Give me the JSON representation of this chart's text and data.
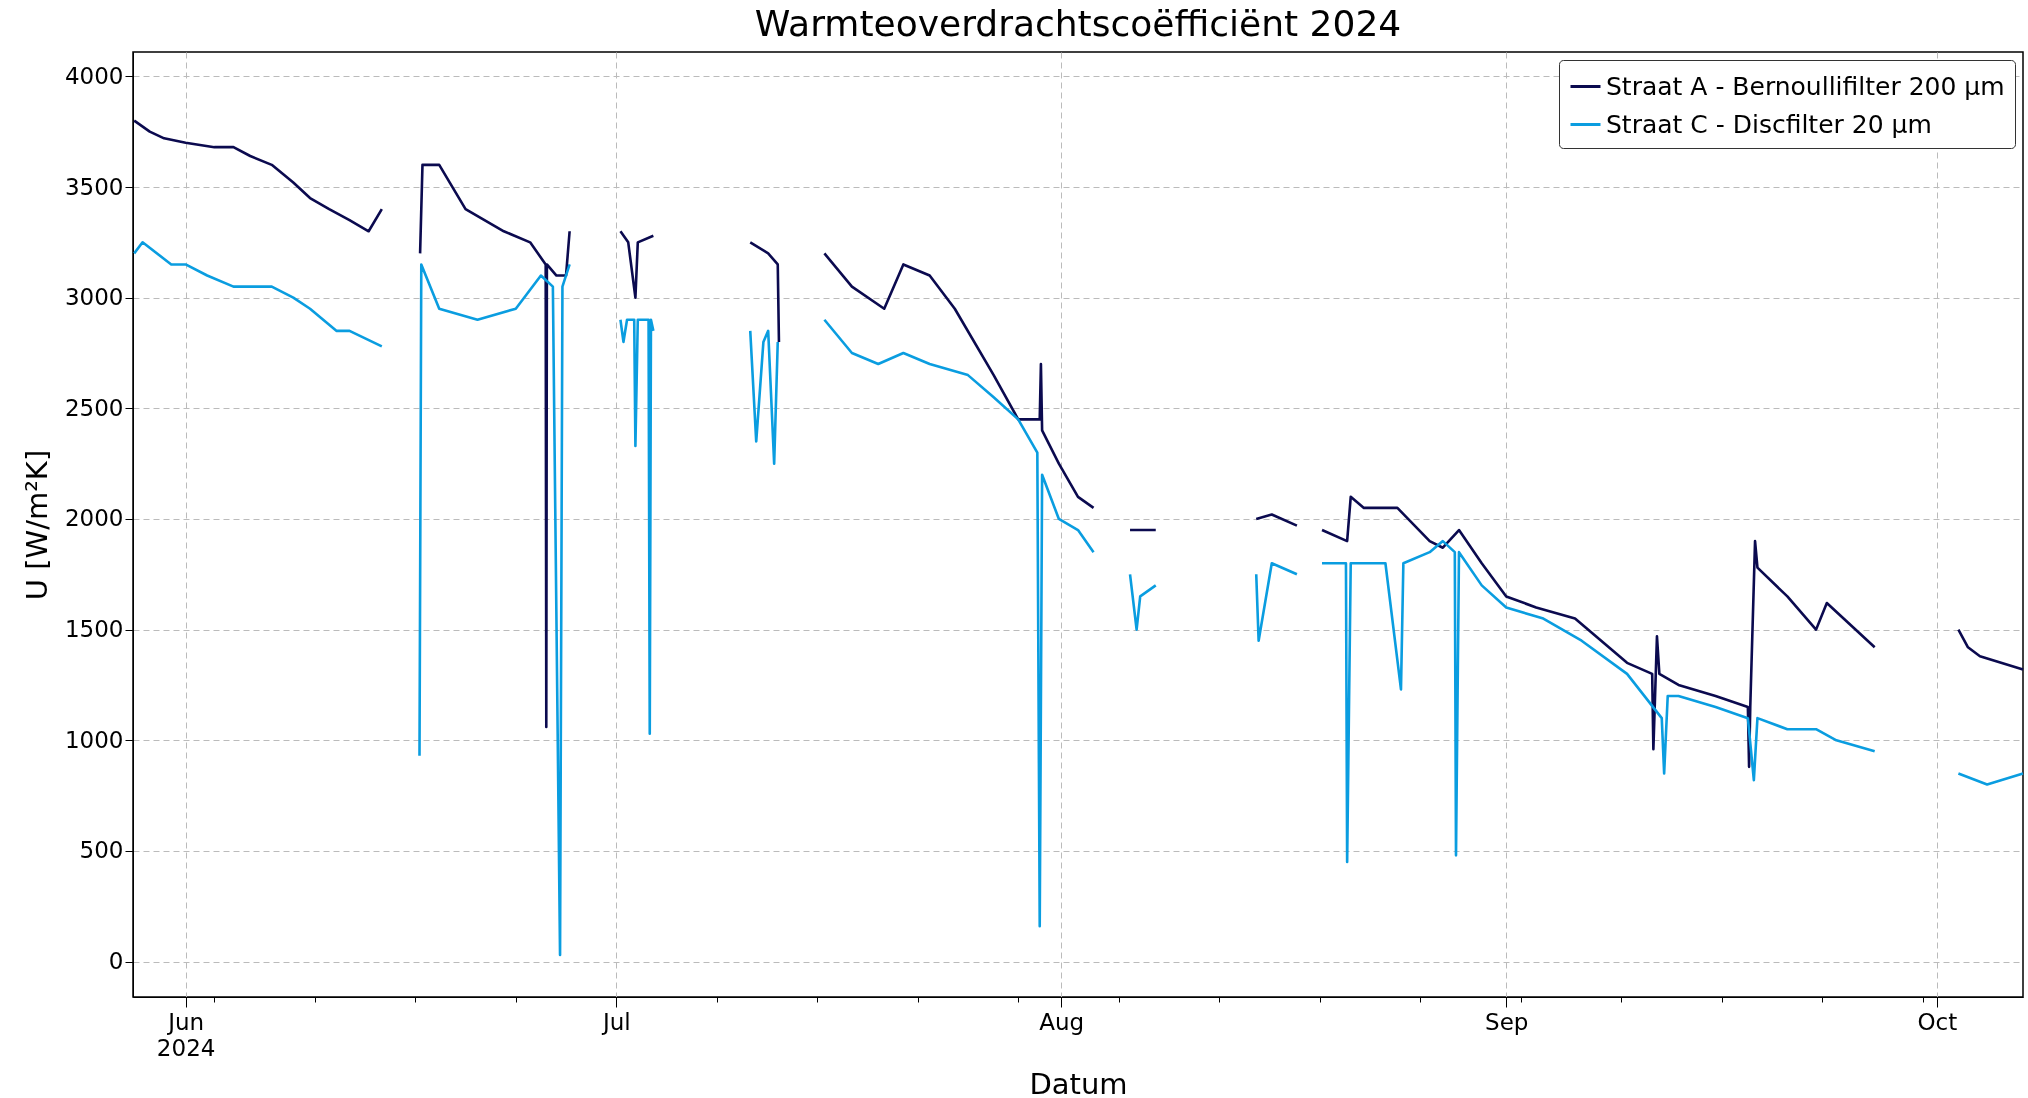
{
  "chart_data": {
    "type": "line",
    "title": "Warmteoverdrachtscoëfficiënt 2024",
    "xlabel": "Datum",
    "ylabel": "U [W/m²K]",
    "xlim": [
      "2024-05-28T08:00",
      "2024-10-07T00:00"
    ],
    "ylim": [
      -160,
      4110
    ],
    "yticks": [
      0,
      500,
      1000,
      1500,
      2000,
      2500,
      3000,
      3500,
      4000
    ],
    "xticks": [
      {
        "value": "2024-06-01",
        "label": "Jun\n2024"
      },
      {
        "value": "2024-06-03",
        "label": null
      },
      {
        "value": "2024-06-10",
        "label": null
      },
      {
        "value": "2024-06-17",
        "label": null
      },
      {
        "value": "2024-06-24",
        "label": null
      },
      {
        "value": "2024-07-01",
        "label": "Jul"
      },
      {
        "value": "2024-07-08",
        "label": null
      },
      {
        "value": "2024-07-15",
        "label": null
      },
      {
        "value": "2024-07-22",
        "label": null
      },
      {
        "value": "2024-07-29",
        "label": null
      },
      {
        "value": "2024-08-01",
        "label": "Aug"
      },
      {
        "value": "2024-08-05",
        "label": null
      },
      {
        "value": "2024-08-12",
        "label": null
      },
      {
        "value": "2024-08-19",
        "label": null
      },
      {
        "value": "2024-08-26",
        "label": null
      },
      {
        "value": "2024-09-01",
        "label": "Sep"
      },
      {
        "value": "2024-09-02",
        "label": null
      },
      {
        "value": "2024-09-09",
        "label": null
      },
      {
        "value": "2024-09-16",
        "label": null
      },
      {
        "value": "2024-09-23",
        "label": null
      },
      {
        "value": "2024-09-30",
        "label": null
      },
      {
        "value": "2024-10-01",
        "label": "Oct"
      }
    ],
    "grid": true,
    "legend": "top right",
    "line_style": "solid",
    "marker": "none",
    "series": [
      {
        "name": "Straat A - Bernoullifilter 200 µm",
        "color": "#0b0a4f",
        "x": [
          "2024-05-28T10:00",
          "2024-05-29T12:00",
          "2024-05-30T12:00",
          "2024-06-01",
          "2024-06-03",
          "2024-06-04T08:00",
          "2024-06-05T12:00",
          "2024-06-07",
          "2024-06-08T12:00",
          "2024-06-09T16:00",
          "2024-06-11",
          "2024-06-12T10:00",
          "2024-06-13T18:00",
          "2024-06-14T16:00",
          "2024-06-15T12:00",
          "2024-06-17T08:00",
          "2024-06-17T12:00",
          "2024-06-18T16:00",
          "2024-06-20T12:00",
          "2024-06-23T04:00",
          "2024-06-25",
          "2024-06-26T02:00",
          "2024-06-26T03:00",
          "2024-06-26T04:00",
          "2024-06-26T20:00",
          "2024-06-27T12:00",
          "2024-06-27T18:00",
          "2024-06-29",
          "2024-07-01T07:00",
          "2024-07-01T20:00",
          "2024-07-02T08:00",
          "2024-07-02T12:00",
          "2024-07-03T14:00",
          "2024-07-06",
          "2024-07-10T08:00",
          "2024-07-11T14:00",
          "2024-07-12T06:00",
          "2024-07-12T08:00",
          "2024-07-14",
          "2024-07-15T12:00",
          "2024-07-17T10:00",
          "2024-07-19T16:00",
          "2024-07-21",
          "2024-07-22T20:00",
          "2024-07-24T14:00",
          "2024-07-27T07:00",
          "2024-07-29",
          "2024-07-30T12:00",
          "2024-07-30T14:00",
          "2024-07-30T16:00",
          "2024-07-31T20:00",
          "2024-08-02T04:00",
          "2024-08-03T06:00",
          "2024-08-04",
          "2024-08-05T19:00",
          "2024-08-06T12:00",
          "2024-08-07T14:00",
          "2024-08-10",
          "2024-08-14T14:00",
          "2024-08-15T16:00",
          "2024-08-17T10:00",
          "2024-08-18",
          "2024-08-19T04:00",
          "2024-08-20T22:00",
          "2024-08-21T04:00",
          "2024-08-22T02:00",
          "2024-08-24T10:00",
          "2024-08-26T16:00",
          "2024-08-27T14:00",
          "2024-08-28T17:00",
          "2024-08-30T07:00",
          "2024-09-01",
          "2024-09-03T02:00",
          "2024-09-05T19:00",
          "2024-09-09T10:00",
          "2024-09-11T04:00",
          "2024-09-11T06:00",
          "2024-09-11T10:00",
          "2024-09-11T12:00",
          "2024-09-11T16:00",
          "2024-09-13",
          "2024-09-15T14:00",
          "2024-09-17T20:00",
          "2024-09-17T22:00",
          "2024-09-18",
          "2024-09-18T08:00",
          "2024-09-18T12:00",
          "2024-09-20T14:00",
          "2024-09-22T14:00",
          "2024-09-23T08:00",
          "2024-09-26T16:00",
          "2024-09-29",
          "2024-10-02T12:00",
          "2024-10-03T04:00",
          "2024-10-04",
          "2024-10-07"
        ],
        "values": [
          3800,
          3750,
          3720,
          3700,
          3680,
          3680,
          3640,
          3600,
          3520,
          3450,
          3400,
          3350,
          3300,
          3400,
          null,
          3200,
          3600,
          3600,
          3400,
          3300,
          3250,
          3150,
          1060,
          3150,
          3100,
          3100,
          3300,
          null,
          3300,
          3250,
          3000,
          3250,
          3280,
          null,
          3250,
          3200,
          3150,
          2800,
          null,
          3200,
          3050,
          2950,
          3150,
          3100,
          2950,
          2650,
          2450,
          2450,
          2700,
          2400,
          2250,
          2100,
          2050,
          null,
          1950,
          1950,
          1950,
          null,
          2000,
          2020,
          1970,
          null,
          1950,
          1900,
          2100,
          2050,
          2050,
          1900,
          1870,
          1950,
          1800,
          1650,
          1600,
          1550,
          1350,
          1300,
          960,
          1300,
          1470,
          1300,
          1250,
          1200,
          1150,
          880,
          1150,
          1900,
          1780,
          1650,
          1500,
          1620,
          1420,
          null,
          1500,
          1420,
          1380,
          1320
        ]
      },
      {
        "name": "Straat C - Discfilter 20 µm",
        "color": "#0a9de0",
        "x": [
          "2024-05-28T10:00",
          "2024-05-29",
          "2024-05-31",
          "2024-06-01",
          "2024-06-02T12:00",
          "2024-06-04T08:00",
          "2024-06-07",
          "2024-06-08T12:00",
          "2024-06-09T16:00",
          "2024-06-11T12:00",
          "2024-06-12T10:00",
          "2024-06-14T16:00",
          "2024-06-15T12:00",
          "2024-06-17T07:00",
          "2024-06-17T10:00",
          "2024-06-18T16:00",
          "2024-06-21T08:00",
          "2024-06-24",
          "2024-06-25T18:00",
          "2024-06-26T14:00",
          "2024-06-27T02:00",
          "2024-06-27T06:00",
          "2024-06-27T18:00",
          "2024-06-29",
          "2024-07-01T07:00",
          "2024-07-01T12:00",
          "2024-07-01T18:00",
          "2024-07-02T06:00",
          "2024-07-02T08:00",
          "2024-07-02T12:00",
          "2024-07-03T06:00",
          "2024-07-03T08:00",
          "2024-07-03T10:00",
          "2024-07-03T14:00",
          "2024-07-06",
          "2024-07-10T08:00",
          "2024-07-10T18:00",
          "2024-07-11T06:00",
          "2024-07-11T14:00",
          "2024-07-12",
          "2024-07-12T06:00",
          "2024-07-14",
          "2024-07-15T12:00",
          "2024-07-17T10:00",
          "2024-07-19T06:00",
          "2024-07-21",
          "2024-07-22T20:00",
          "2024-07-25T12:00",
          "2024-07-27T07:00",
          "2024-07-29",
          "2024-07-30T08:00",
          "2024-07-30T12:00",
          "2024-07-30T16:00",
          "2024-07-31T20:00",
          "2024-08-02T04:00",
          "2024-08-03T06:00",
          "2024-08-04",
          "2024-08-05T19:00",
          "2024-08-06T06:00",
          "2024-08-06T12:00",
          "2024-08-07T14:00",
          "2024-08-10",
          "2024-08-14T14:00",
          "2024-08-14T18:00",
          "2024-08-15T16:00",
          "2024-08-17T10:00",
          "2024-08-18",
          "2024-08-19T04:00",
          "2024-08-20T20:00",
          "2024-08-20T22:00",
          "2024-08-21T04:00",
          "2024-08-23T14:00",
          "2024-08-24T16:00",
          "2024-08-24T20:00",
          "2024-08-26T16:00",
          "2024-08-27T14:00",
          "2024-08-28T10:00",
          "2024-08-28T12:00",
          "2024-08-28T17:00",
          "2024-08-30T07:00",
          "2024-09-01",
          "2024-09-03T14:00",
          "2024-09-06T06:00",
          "2024-09-09T10:00",
          "2024-09-11T20:00",
          "2024-09-12",
          "2024-09-12T06:00",
          "2024-09-13",
          "2024-09-15T14:00",
          "2024-09-17T20:00",
          "2024-09-18T06:00",
          "2024-09-18T12:00",
          "2024-09-20T14:00",
          "2024-09-22T14:00",
          "2024-09-24",
          "2024-09-26T16:00",
          "2024-09-29",
          "2024-10-02T12:00",
          "2024-10-04T12:00",
          "2024-10-07"
        ],
        "values": [
          3200,
          3250,
          3150,
          3150,
          3100,
          3050,
          3050,
          3000,
          2950,
          2850,
          2850,
          2780,
          null,
          930,
          3150,
          2950,
          2900,
          2950,
          3100,
          3050,
          30,
          3050,
          3150,
          null,
          2900,
          2800,
          2900,
          2900,
          2330,
          2900,
          2900,
          1030,
          2900,
          2850,
          null,
          2850,
          2350,
          2800,
          2850,
          2250,
          2800,
          null,
          2900,
          2750,
          2700,
          2750,
          2700,
          2650,
          2550,
          2450,
          2300,
          160,
          2200,
          2000,
          1950,
          1850,
          null,
          1750,
          1500,
          1650,
          1700,
          null,
          1750,
          1450,
          1800,
          1750,
          null,
          1800,
          1800,
          450,
          1800,
          1800,
          1230,
          1800,
          1850,
          1900,
          1850,
          480,
          1850,
          1700,
          1600,
          1550,
          1450,
          1300,
          1100,
          850,
          1200,
          1200,
          1150,
          1100,
          820,
          1100,
          1050,
          1050,
          1000,
          950,
          null,
          850,
          800,
          850
        ]
      }
    ]
  }
}
